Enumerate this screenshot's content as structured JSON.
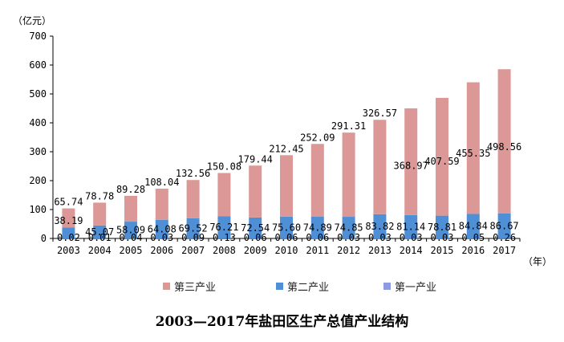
{
  "chart_data": {
    "type": "bar",
    "stacked": true,
    "title": "2003—2017年盐田区生产总值产业结构",
    "ylabel": "（亿元）",
    "xlabel": "（年）",
    "ylim": [
      0,
      700
    ],
    "yticks": [
      0,
      100,
      200,
      300,
      400,
      500,
      600,
      700
    ],
    "grid": false,
    "legend_position": "bottom",
    "categories": [
      "2003",
      "2004",
      "2005",
      "2006",
      "2007",
      "2008",
      "2009",
      "2010",
      "2011",
      "2012",
      "2013",
      "2014",
      "2015",
      "2016",
      "2017"
    ],
    "series": [
      {
        "name": "第一产业",
        "color": "#8e9be0",
        "values": [
          0.02,
          0.01,
          0.04,
          0.03,
          0.09,
          0.13,
          0.06,
          0.06,
          0.06,
          0.03,
          0.03,
          0.03,
          0.03,
          0.05,
          0.26
        ],
        "labels": [
          "0.02",
          "0.01",
          "0.04",
          "0.03",
          "0.09",
          "0.13",
          "0.06",
          "0.06",
          "0.06",
          "0.03",
          "0.03",
          "0.03",
          "0.03",
          "0.05",
          "0.26"
        ]
      },
      {
        "name": "第二产业",
        "color": "#4f8fd6",
        "values": [
          38.19,
          45.07,
          58.09,
          64.08,
          69.52,
          76.21,
          72.54,
          75.6,
          74.89,
          74.85,
          83.82,
          81.14,
          78.81,
          84.84,
          86.67
        ],
        "labels": [
          "38.19",
          "45.07",
          "58.09",
          "64.08",
          "69.52",
          "76.21",
          "72.54",
          "75.60",
          "74.89",
          "74.85",
          "83.82",
          "81.14",
          "78.81",
          "84.84",
          "86.67"
        ]
      },
      {
        "name": "第三产业",
        "color": "#dc9897",
        "values": [
          65.74,
          78.78,
          89.28,
          108.04,
          132.56,
          150.08,
          179.44,
          212.45,
          252.09,
          291.31,
          326.57,
          368.97,
          407.59,
          455.35,
          498.56
        ],
        "labels": [
          "65.74",
          "78.78",
          "89.28",
          "108.04",
          "132.56",
          "150.08",
          "179.44",
          "212.45",
          "252.09",
          "291.31",
          "326.57",
          "368.97",
          "407.59",
          "455.35",
          "498.56"
        ]
      }
    ],
    "legend_order": [
      "第三产业",
      "第二产业",
      "第一产业"
    ]
  }
}
